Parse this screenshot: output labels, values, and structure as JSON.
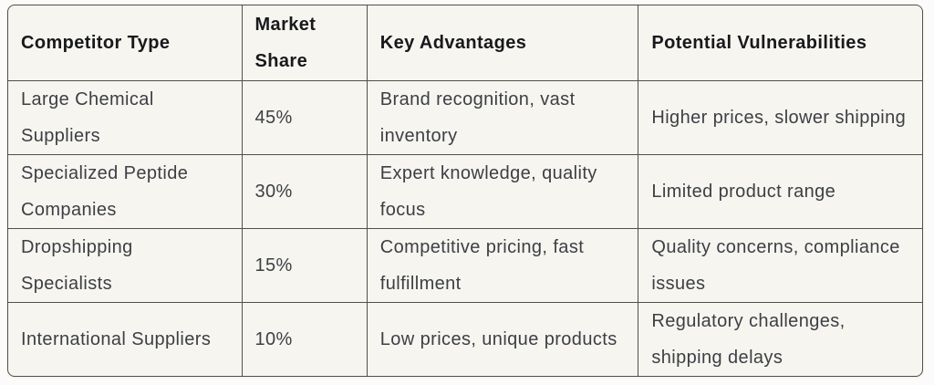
{
  "table": {
    "headers": [
      "Competitor Type",
      "Market Share",
      "Key Advantages",
      "Potential Vulnerabilities"
    ],
    "rows": [
      [
        "Large Chemical Suppliers",
        "45%",
        "Brand recognition, vast inventory",
        "Higher prices, slower shipping"
      ],
      [
        "Specialized Peptide Companies",
        "30%",
        "Expert knowledge, quality focus",
        "Limited product range"
      ],
      [
        "Dropshipping Specialists",
        "15%",
        "Competitive pricing, fast fulfillment",
        "Quality concerns, compliance issues"
      ],
      [
        "International Suppliers",
        "10%",
        "Low prices, unique products",
        "Regulatory challenges, shipping delays"
      ]
    ]
  },
  "colors": {
    "page_background": "#fcfbf9",
    "cell_background": "#f7f5f0",
    "grid_border": "#514f49",
    "header_text": "#18191c",
    "body_text": "#3c3f44"
  }
}
